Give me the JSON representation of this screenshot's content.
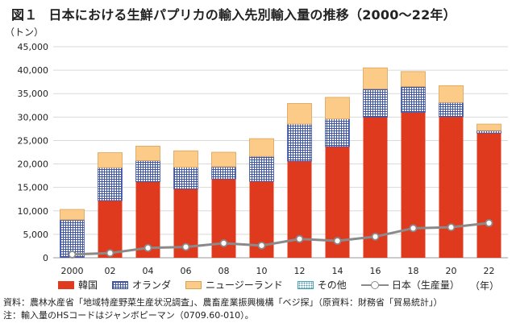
{
  "title": {
    "fig_label": "図１",
    "text": "日本における生鮮パプリカの輸入先別輸入量の推移（2000〜22年）"
  },
  "y_unit": "（トン）",
  "x_unit": "（年）",
  "notes": [
    "資料：農林水産省「地域特産野菜生産状況調査」、農畜産業振興機構「ベジ探」（原資料：財務省「貿易統計」）",
    "注：輸入量のHSコードはジャンボピーマン（0709.60-010）。"
  ],
  "colors": {
    "korea": "#e03a1e",
    "netherlands": "#3d55a8",
    "new_zealand": "#fccb88",
    "other": "#4aa0b5",
    "japan_line": "#8a8a8a",
    "grid": "#d9d9d9"
  },
  "chart_data": {
    "type": "bar",
    "stacked": true,
    "title": "日本における生鮮パプリカの輸入先別輸入量の推移（2000〜22年）",
    "ylabel": "（トン）",
    "xlabel": "（年）",
    "ylim": [
      0,
      45000
    ],
    "yticks": [
      0,
      5000,
      10000,
      15000,
      20000,
      25000,
      30000,
      35000,
      40000,
      45000
    ],
    "ytick_labels": [
      "0",
      "5,000",
      "10,000",
      "15,000",
      "20,000",
      "25,000",
      "30,000",
      "35,000",
      "40,000",
      "45,000"
    ],
    "categories": [
      "2000",
      "02",
      "04",
      "06",
      "08",
      "10",
      "12",
      "14",
      "16",
      "18",
      "20",
      "22"
    ],
    "grid": true,
    "legend_position": "bottom",
    "series": [
      {
        "name": "韓国",
        "key": "korea",
        "kind": "bar",
        "values": [
          100,
          12200,
          16200,
          14700,
          16800,
          16300,
          20600,
          23700,
          30000,
          31000,
          30100,
          26600
        ]
      },
      {
        "name": "オランダ",
        "key": "netherlands",
        "kind": "bar",
        "values": [
          8000,
          7000,
          4500,
          4600,
          2600,
          5300,
          7900,
          5900,
          6000,
          5500,
          3000,
          500
        ]
      },
      {
        "name": "ニュージーランド",
        "key": "new_zealand",
        "kind": "bar",
        "values": [
          2200,
          3200,
          3100,
          3500,
          3100,
          3800,
          4400,
          4600,
          4500,
          3200,
          3600,
          1400
        ]
      },
      {
        "name": "その他",
        "key": "other",
        "kind": "bar",
        "values": [
          0,
          0,
          0,
          0,
          0,
          0,
          0,
          0,
          0,
          0,
          0,
          0
        ]
      },
      {
        "name": "日本（生産量）",
        "key": "japan_line",
        "kind": "line",
        "values": [
          700,
          1000,
          2100,
          2300,
          3100,
          2600,
          4000,
          3600,
          4500,
          6300,
          6500,
          7400
        ]
      }
    ]
  }
}
